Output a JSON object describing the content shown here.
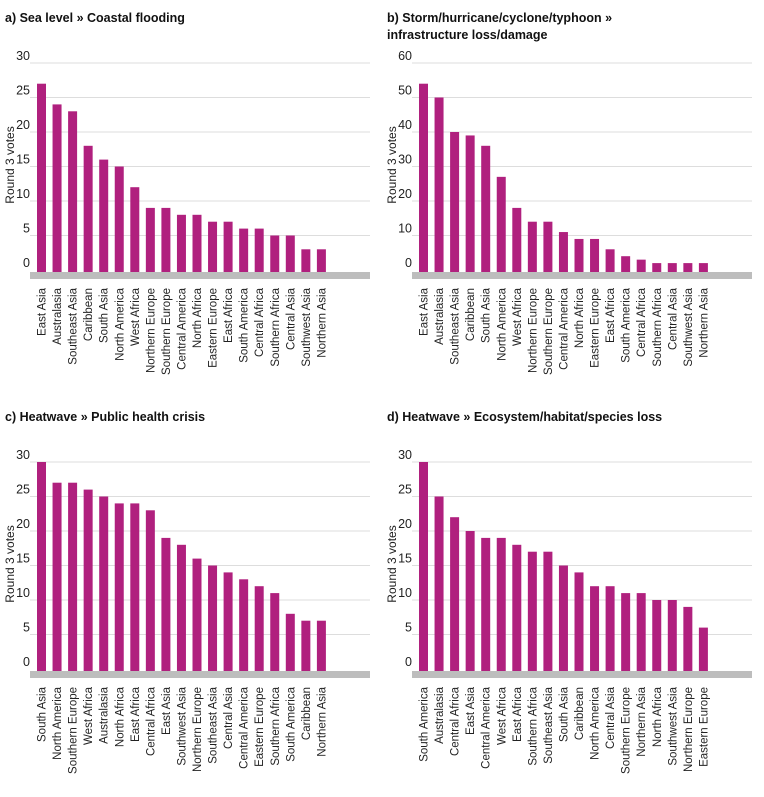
{
  "colors": {
    "bar": "#b0207e",
    "grid": "#dddddd",
    "baseline": "#bdbdbd"
  },
  "chart_data": [
    {
      "id": "a",
      "type": "bar",
      "title_lines": [
        "a) Sea level » Coastal flooding"
      ],
      "ylabel": "Round 3 votes",
      "xlabel": "",
      "ylim": [
        0,
        30
      ],
      "yticks": [
        0,
        5,
        10,
        15,
        20,
        25,
        30
      ],
      "categories": [
        "East Asia",
        "Australasia",
        "Southeast Asia",
        "Caribbean",
        "South Asia",
        "North America",
        "West Africa",
        "Northern Europe",
        "Southern Europe",
        "Central America",
        "North Africa",
        "Eastern Europe",
        "East Africa",
        "South America",
        "Central Africa",
        "Southern Africa",
        "Central Asia",
        "Southwest Asia",
        "Northern Asia"
      ],
      "values": [
        27,
        24,
        23,
        18,
        16,
        15,
        12,
        9,
        9,
        8,
        8,
        7,
        7,
        6,
        6,
        5,
        5,
        3,
        3
      ]
    },
    {
      "id": "b",
      "type": "bar",
      "title_lines": [
        "b) Storm/hurricane/cyclone/typhoon »",
        "infrastructure loss/damage"
      ],
      "ylabel": "Round 3 votes",
      "xlabel": "",
      "ylim": [
        0,
        60
      ],
      "yticks": [
        0,
        10,
        20,
        30,
        40,
        50,
        60
      ],
      "categories": [
        "East Asia",
        "Australasia",
        "Southeast Asia",
        "Caribbean",
        "South Asia",
        "North America",
        "West Africa",
        "Northern Europe",
        "Southern Europe",
        "Central America",
        "North Africa",
        "Eastern Europe",
        "East Africa",
        "South America",
        "Central Africa",
        "Southern Africa",
        "Central Asia",
        "Southwest Asia",
        "Northern Asia"
      ],
      "values": [
        54,
        50,
        40,
        39,
        36,
        27,
        18,
        14,
        14,
        11,
        9,
        9,
        6,
        4,
        3,
        2,
        2,
        2,
        2
      ]
    },
    {
      "id": "c",
      "type": "bar",
      "title_lines": [
        "c) Heatwave » Public health crisis"
      ],
      "ylabel": "Round 3 votes",
      "xlabel": "",
      "ylim": [
        0,
        30
      ],
      "yticks": [
        0,
        5,
        10,
        15,
        20,
        25,
        30
      ],
      "categories": [
        "South Asia",
        "North America",
        "Southern Europe",
        "West Africa",
        "Australasia",
        "North Africa",
        "East Africa",
        "Central Africa",
        "East Asia",
        "Southwest Asia",
        "Northern Europe",
        "Southeast Asia",
        "Central Asia",
        "Central America",
        "Eastern Europe",
        "Southern Africa",
        "South America",
        "Caribbean",
        "Northern Asia"
      ],
      "values": [
        30,
        27,
        27,
        26,
        25,
        24,
        24,
        23,
        19,
        18,
        16,
        15,
        14,
        13,
        12,
        11,
        8,
        7,
        7
      ]
    },
    {
      "id": "d",
      "type": "bar",
      "title_lines": [
        "d) Heatwave » Ecosystem/habitat/species loss"
      ],
      "ylabel": "Round 3 votes",
      "xlabel": "",
      "ylim": [
        0,
        30
      ],
      "yticks": [
        0,
        5,
        10,
        15,
        20,
        25,
        30
      ],
      "categories": [
        "South America",
        "Australasia",
        "Central Africa",
        "East Asia",
        "Central America",
        "West Africa",
        "East Africa",
        "Southern Africa",
        "Southeast Asia",
        "South Asia",
        "Caribbean",
        "North America",
        "Central Asia",
        "Southern Europe",
        "Northern Asia",
        "North Africa",
        "Southwest Asia",
        "Northern Europe",
        "Eastern Europe"
      ],
      "values": [
        30,
        25,
        22,
        20,
        19,
        19,
        18,
        17,
        17,
        15,
        14,
        12,
        12,
        11,
        11,
        10,
        10,
        9,
        6
      ]
    }
  ]
}
